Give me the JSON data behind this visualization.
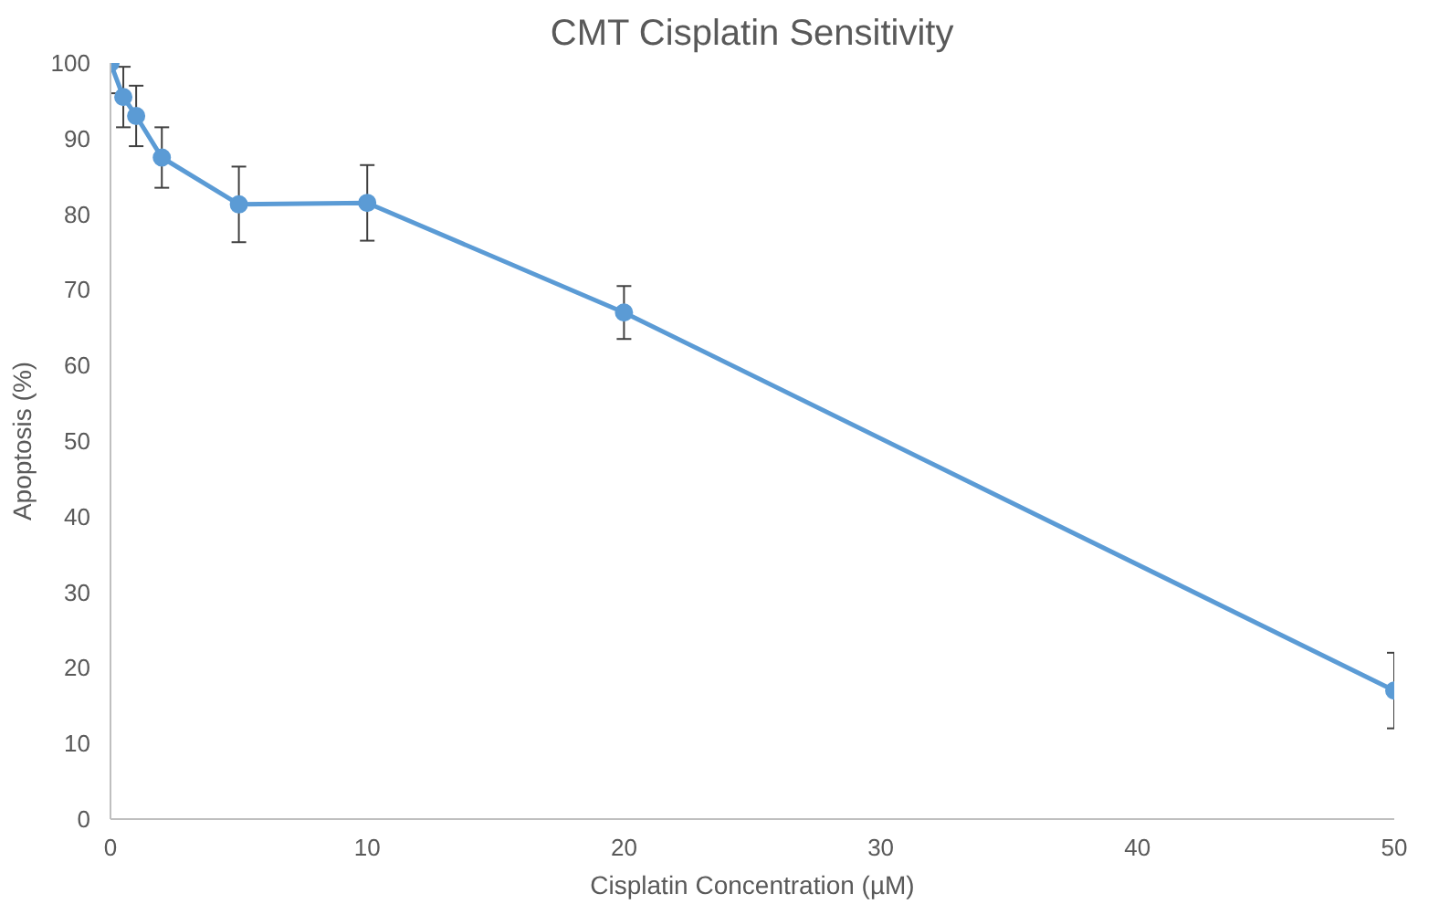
{
  "chart_data": {
    "type": "line",
    "title": "CMT Cisplatin Sensitivity",
    "xlabel": "Cisplatin Concentration (µM)",
    "ylabel": "Apoptosis (%)",
    "x": [
      0,
      0.5,
      1,
      2,
      5,
      10,
      20,
      50
    ],
    "series": [
      {
        "color": "#5b9bd5",
        "values": [
          100,
          95.5,
          93,
          87.5,
          81.3,
          81.5,
          67,
          17
        ],
        "errors": [
          [
            96,
            100
          ],
          4,
          4,
          4,
          5,
          5,
          3.5,
          5
        ]
      }
    ],
    "xlim": [
      0,
      50
    ],
    "xticks": [
      0,
      10,
      20,
      30,
      40,
      50
    ],
    "ylim": [
      0,
      100
    ],
    "yticks": [
      0,
      10,
      20,
      30,
      40,
      50,
      60,
      70,
      80,
      90,
      100
    ],
    "grid": false,
    "marker": "circle",
    "line_style": "solid"
  }
}
